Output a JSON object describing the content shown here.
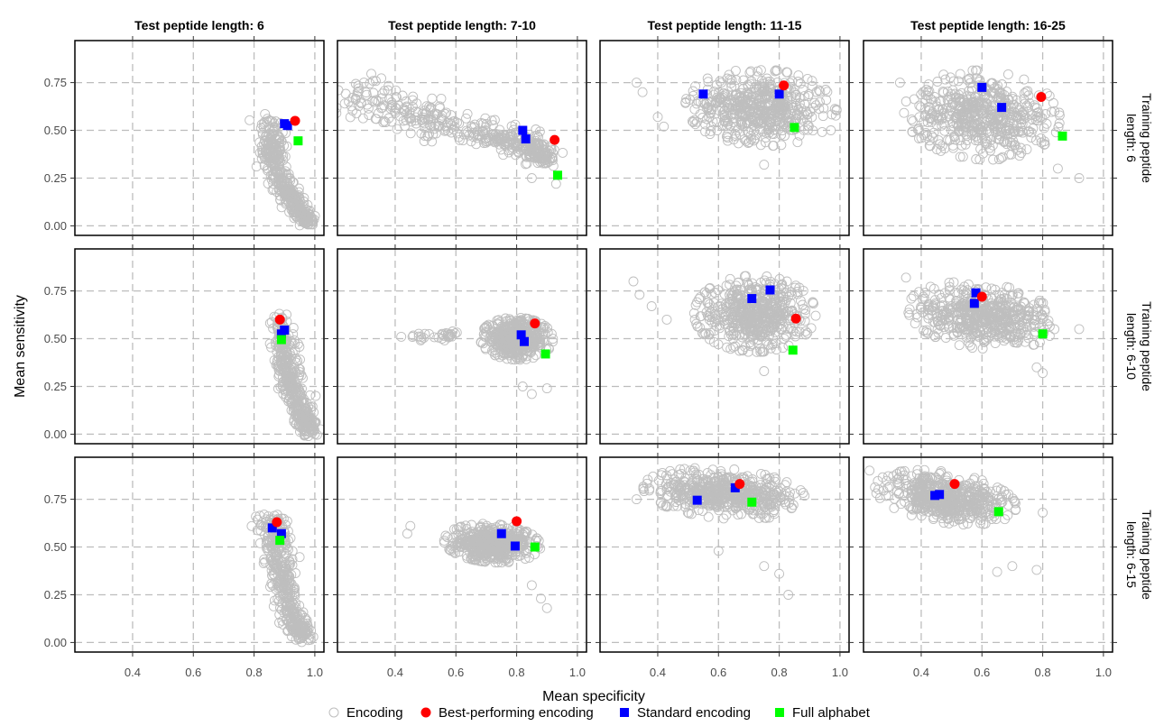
{
  "chart_data": {
    "type": "scatter",
    "xlabel": "Mean specificity",
    "ylabel": "Mean sensitivity",
    "xlim": [
      0.21,
      1.03
    ],
    "ylim": [
      -0.05,
      0.97
    ],
    "x_ticks": [
      "0.4",
      "0.6",
      "0.8",
      "1.0"
    ],
    "y_ticks": [
      "0.00",
      "0.25",
      "0.50",
      "0.75"
    ],
    "grid": true,
    "legend_position": "bottom",
    "columns": [
      "Test peptide length: 6",
      "Test peptide length: 7-10",
      "Test peptide length: 11-15",
      "Test peptide length: 16-25"
    ],
    "rows": [
      [
        "Training peptide",
        "length: 6"
      ],
      [
        "Training peptide",
        "length: 6-10"
      ],
      [
        "Training peptide",
        "length: 6-15"
      ]
    ],
    "series": [
      {
        "name": "Encoding",
        "marker": "open-circle",
        "color": "#bebebe"
      },
      {
        "name": "Best-performing encoding",
        "marker": "filled-circle",
        "color": "#ff0000"
      },
      {
        "name": "Standard encoding",
        "marker": "square",
        "color": "#0000ff"
      },
      {
        "name": "Full alphabet",
        "marker": "square",
        "color": "#00ff00"
      }
    ],
    "panels": [
      {
        "row": 0,
        "col": 0,
        "encoding_cloud": {
          "segments": [
            [
              0.85,
              0.55
            ],
            [
              0.86,
              0.38
            ],
            [
              0.9,
              0.2
            ],
            [
              0.94,
              0.1
            ],
            [
              0.98,
              0.02
            ]
          ],
          "width": [
            0.03,
            0.06
          ],
          "outliers": [
            [
              0.97,
              0.03
            ],
            [
              0.99,
              0.01
            ],
            [
              0.95,
              0.08
            ]
          ]
        },
        "best": [
          [
            0.935,
            0.55
          ]
        ],
        "standard": [
          [
            0.9,
            0.535
          ],
          [
            0.91,
            0.525
          ]
        ],
        "full_alphabet": [
          [
            0.945,
            0.445
          ]
        ]
      },
      {
        "row": 0,
        "col": 1,
        "encoding_cloud": {
          "segments": [
            [
              0.28,
              0.7
            ],
            [
              0.5,
              0.57
            ],
            [
              0.7,
              0.47
            ],
            [
              0.85,
              0.42
            ],
            [
              0.9,
              0.33
            ]
          ],
          "width": [
            0.06,
            0.14
          ],
          "outliers": [
            [
              0.28,
              0.72
            ],
            [
              0.27,
              0.66
            ],
            [
              0.85,
              0.25
            ],
            [
              0.93,
              0.22
            ]
          ]
        },
        "best": [
          [
            0.925,
            0.45
          ]
        ],
        "standard": [
          [
            0.82,
            0.5
          ],
          [
            0.83,
            0.455
          ]
        ],
        "full_alphabet": [
          [
            0.935,
            0.265
          ]
        ]
      },
      {
        "row": 0,
        "col": 2,
        "encoding_cloud": {
          "ellipse": [
            0.74,
            0.62,
            0.25,
            0.2,
            -0.15
          ],
          "outliers": [
            [
              0.33,
              0.75
            ],
            [
              0.35,
              0.7
            ],
            [
              0.4,
              0.57
            ],
            [
              0.42,
              0.52
            ],
            [
              0.97,
              0.5
            ],
            [
              0.75,
              0.32
            ]
          ]
        },
        "best": [
          [
            0.815,
            0.735
          ]
        ],
        "standard": [
          [
            0.55,
            0.69
          ],
          [
            0.8,
            0.69
          ]
        ],
        "full_alphabet": [
          [
            0.85,
            0.515
          ]
        ]
      },
      {
        "row": 0,
        "col": 3,
        "encoding_cloud": {
          "ellipse": [
            0.6,
            0.58,
            0.26,
            0.23,
            -0.35
          ],
          "outliers": [
            [
              0.33,
              0.75
            ],
            [
              0.92,
              0.25
            ],
            [
              0.85,
              0.3
            ],
            [
              0.4,
              0.46
            ]
          ]
        },
        "best": [
          [
            0.795,
            0.675
          ]
        ],
        "standard": [
          [
            0.6,
            0.725
          ],
          [
            0.665,
            0.62
          ]
        ],
        "full_alphabet": [
          [
            0.865,
            0.47
          ]
        ]
      },
      {
        "row": 1,
        "col": 0,
        "encoding_cloud": {
          "segments": [
            [
              0.88,
              0.6
            ],
            [
              0.9,
              0.42
            ],
            [
              0.92,
              0.25
            ],
            [
              0.96,
              0.1
            ],
            [
              0.99,
              0.01
            ]
          ],
          "width": [
            0.035,
            0.055
          ],
          "outliers": [
            [
              1.0,
              0.0
            ],
            [
              0.97,
              0.05
            ],
            [
              0.95,
              0.15
            ]
          ]
        },
        "best": [
          [
            0.885,
            0.6
          ]
        ],
        "standard": [
          [
            0.9,
            0.545
          ],
          [
            0.89,
            0.525
          ]
        ],
        "full_alphabet": [
          [
            0.89,
            0.495
          ]
        ]
      },
      {
        "row": 1,
        "col": 1,
        "encoding_cloud": {
          "ellipse": [
            0.8,
            0.5,
            0.12,
            0.11,
            -0.2
          ],
          "tail": [
            [
              0.6,
              0.52
            ],
            [
              0.45,
              0.51
            ]
          ],
          "outliers": [
            [
              0.42,
              0.51
            ],
            [
              0.82,
              0.25
            ],
            [
              0.85,
              0.21
            ],
            [
              0.9,
              0.24
            ]
          ]
        },
        "best": [
          [
            0.86,
            0.58
          ]
        ],
        "standard": [
          [
            0.815,
            0.52
          ],
          [
            0.825,
            0.485
          ]
        ],
        "full_alphabet": [
          [
            0.895,
            0.42
          ]
        ]
      },
      {
        "row": 1,
        "col": 2,
        "encoding_cloud": {
          "ellipse": [
            0.72,
            0.63,
            0.2,
            0.2,
            -0.1
          ],
          "outliers": [
            [
              0.32,
              0.8
            ],
            [
              0.34,
              0.73
            ],
            [
              0.38,
              0.67
            ],
            [
              0.43,
              0.6
            ],
            [
              0.75,
              0.33
            ],
            [
              0.92,
              0.62
            ]
          ]
        },
        "best": [
          [
            0.855,
            0.605
          ]
        ],
        "standard": [
          [
            0.77,
            0.755
          ],
          [
            0.71,
            0.71
          ]
        ],
        "full_alphabet": [
          [
            0.845,
            0.44
          ]
        ]
      },
      {
        "row": 1,
        "col": 3,
        "encoding_cloud": {
          "ellipse": [
            0.6,
            0.62,
            0.25,
            0.17,
            -0.3
          ],
          "outliers": [
            [
              0.35,
              0.82
            ],
            [
              0.8,
              0.32
            ],
            [
              0.78,
              0.35
            ],
            [
              0.92,
              0.55
            ]
          ]
        },
        "best": [
          [
            0.6,
            0.72
          ]
        ],
        "standard": [
          [
            0.58,
            0.74
          ],
          [
            0.575,
            0.685
          ]
        ],
        "full_alphabet": [
          [
            0.8,
            0.525
          ]
        ]
      },
      {
        "row": 2,
        "col": 0,
        "encoding_cloud": {
          "segments": [
            [
              0.86,
              0.65
            ],
            [
              0.88,
              0.5
            ],
            [
              0.9,
              0.3
            ],
            [
              0.93,
              0.12
            ],
            [
              0.97,
              0.03
            ]
          ],
          "width": [
            0.04,
            0.06
          ],
          "outliers": [
            [
              0.82,
              0.52
            ],
            [
              0.98,
              0.04
            ],
            [
              0.96,
              0.09
            ]
          ]
        },
        "best": [
          [
            0.875,
            0.63
          ]
        ],
        "standard": [
          [
            0.86,
            0.6
          ],
          [
            0.89,
            0.57
          ]
        ],
        "full_alphabet": [
          [
            0.885,
            0.535
          ]
        ]
      },
      {
        "row": 2,
        "col": 1,
        "encoding_cloud": {
          "ellipse": [
            0.72,
            0.52,
            0.16,
            0.1,
            -0.15
          ],
          "outliers": [
            [
              0.45,
              0.61
            ],
            [
              0.44,
              0.57
            ],
            [
              0.85,
              0.3
            ],
            [
              0.9,
              0.18
            ],
            [
              0.88,
              0.23
            ]
          ]
        },
        "best": [
          [
            0.8,
            0.635
          ]
        ],
        "standard": [
          [
            0.75,
            0.57
          ],
          [
            0.795,
            0.505
          ]
        ],
        "full_alphabet": [
          [
            0.86,
            0.5
          ]
        ]
      },
      {
        "row": 2,
        "col": 2,
        "encoding_cloud": {
          "ellipse": [
            0.62,
            0.78,
            0.27,
            0.13,
            -0.15
          ],
          "outliers": [
            [
              0.33,
              0.75
            ],
            [
              0.75,
              0.4
            ],
            [
              0.8,
              0.36
            ],
            [
              0.83,
              0.25
            ],
            [
              0.6,
              0.48
            ]
          ]
        },
        "best": [
          [
            0.67,
            0.83
          ]
        ],
        "standard": [
          [
            0.53,
            0.745
          ],
          [
            0.655,
            0.81
          ]
        ],
        "full_alphabet": [
          [
            0.71,
            0.735
          ]
        ]
      },
      {
        "row": 2,
        "col": 3,
        "encoding_cloud": {
          "ellipse": [
            0.48,
            0.76,
            0.24,
            0.13,
            -0.3
          ],
          "outliers": [
            [
              0.23,
              0.9
            ],
            [
              0.8,
              0.68
            ],
            [
              0.78,
              0.38
            ],
            [
              0.7,
              0.4
            ],
            [
              0.65,
              0.37
            ]
          ]
        },
        "best": [
          [
            0.51,
            0.83
          ]
        ],
        "standard": [
          [
            0.445,
            0.77
          ],
          [
            0.46,
            0.775
          ]
        ],
        "full_alphabet": [
          [
            0.655,
            0.685
          ]
        ]
      }
    ]
  }
}
